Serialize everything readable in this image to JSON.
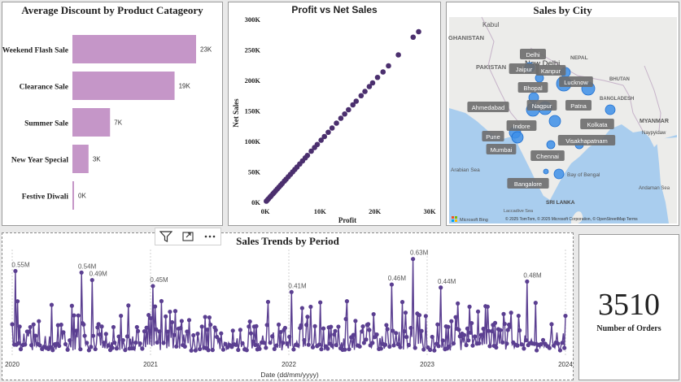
{
  "discount_chart": {
    "title": "Average Discount by Product Catageory",
    "chart_data": {
      "type": "bar",
      "orientation": "horizontal",
      "title": "Average Discount by Product Catageory",
      "categories": [
        "Weekend Flash Sale",
        "Clearance Sale",
        "Summer Sale",
        "New Year Special",
        "Festive Diwali"
      ],
      "values": [
        23000,
        19000,
        7000,
        3000,
        0
      ],
      "value_labels": [
        "23K",
        "19K",
        "7K",
        "3K",
        "0K"
      ],
      "bar_color": "#c596c8"
    }
  },
  "scatter_chart": {
    "title": "Profit vs Net Sales",
    "chart_data": {
      "type": "scatter",
      "title": "Profit vs Net Sales",
      "xlabel": "Profit",
      "ylabel": "Net Sales",
      "xlim": [
        0,
        30000
      ],
      "ylim": [
        0,
        300000
      ],
      "x_ticks": [
        "0K",
        "10K",
        "20K",
        "30K"
      ],
      "y_ticks": [
        "0K",
        "50K",
        "100K",
        "150K",
        "200K",
        "250K",
        "300K"
      ],
      "point_color": "#4b2f6e",
      "points": [
        [
          28,
          280
        ],
        [
          27,
          271
        ],
        [
          24.3,
          242
        ],
        [
          22.5,
          224
        ],
        [
          21.5,
          214
        ],
        [
          20.5,
          205
        ],
        [
          19.6,
          196
        ],
        [
          19,
          190
        ],
        [
          18.2,
          182
        ],
        [
          17.5,
          175
        ],
        [
          16.6,
          166
        ],
        [
          16,
          160
        ],
        [
          15.2,
          152
        ],
        [
          14.5,
          145
        ],
        [
          13.8,
          138
        ],
        [
          13,
          130
        ],
        [
          12.2,
          122
        ],
        [
          11.5,
          115
        ],
        [
          10.8,
          108
        ],
        [
          10.2,
          102
        ],
        [
          9.5,
          95
        ],
        [
          9,
          90
        ],
        [
          8.4,
          84
        ],
        [
          7.7,
          77
        ],
        [
          7.3,
          73
        ],
        [
          6.8,
          68
        ],
        [
          6.3,
          63
        ],
        [
          5.8,
          58
        ],
        [
          5.4,
          54
        ],
        [
          5,
          50
        ],
        [
          4.6,
          46
        ],
        [
          4.2,
          42
        ],
        [
          3.8,
          38
        ],
        [
          3.5,
          35
        ],
        [
          3.1,
          31
        ],
        [
          2.8,
          28
        ],
        [
          2.5,
          25
        ],
        [
          2.2,
          22
        ],
        [
          1.9,
          19
        ],
        [
          1.6,
          16
        ],
        [
          1.4,
          14
        ],
        [
          1.1,
          11
        ],
        [
          0.9,
          9
        ],
        [
          0.6,
          6
        ],
        [
          0.4,
          4
        ],
        [
          0.2,
          2
        ]
      ]
    }
  },
  "city_map": {
    "title": "Sales by City",
    "places": [
      "GHANISTAN",
      "Kabul",
      "PAKISTAN",
      "New Delhi",
      "NEPAL",
      "BHUTAN",
      "BANGLADESH",
      "MYANMAR",
      "Naypyidaw",
      "Arabian Sea",
      "Bay of Bengal",
      "SRI LANKA",
      "Andaman Sea",
      "Laccadive Sea"
    ],
    "cities": [
      "Delhi",
      "Jaipur",
      "Kanpur",
      "Lucknow",
      "Bhopal",
      "Ahmedabad",
      "Nagpur",
      "Patna",
      "Kolkata",
      "Indore",
      "Pune",
      "Mumbai",
      "Visakhapatnam",
      "Chennai",
      "Bangalore"
    ],
    "logo_text": "Microsoft Bing",
    "copyright": "© 2025 TomTom, © 2025 Microsoft Corporation, © OpenStreetMap  Terms"
  },
  "trend_chart": {
    "title": "Sales Trends by Period",
    "chart_data": {
      "type": "line",
      "title": "Sales Trends by Period",
      "xlabel": "Date (dd/mm/yyyy)",
      "x_ticks": [
        "2020",
        "2021",
        "2022",
        "2023",
        "2024"
      ],
      "ylim": [
        0,
        0.65
      ],
      "series_color": "#5b3f91",
      "annotations": [
        {
          "x": 2020.02,
          "y": 0.55,
          "label": "0.55M"
        },
        {
          "x": 2020.5,
          "y": 0.54,
          "label": "0.54M"
        },
        {
          "x": 2020.58,
          "y": 0.49,
          "label": "0.49M"
        },
        {
          "x": 2021.02,
          "y": 0.45,
          "label": "0.45M"
        },
        {
          "x": 2022.02,
          "y": 0.41,
          "label": "0.41M"
        },
        {
          "x": 2022.74,
          "y": 0.46,
          "label": "0.46M"
        },
        {
          "x": 2022.9,
          "y": 0.63,
          "label": "0.63M"
        },
        {
          "x": 2023.1,
          "y": 0.44,
          "label": "0.44M"
        },
        {
          "x": 2023.72,
          "y": 0.48,
          "label": "0.48M"
        }
      ],
      "base_level_m": 0.05,
      "spike_range_m": [
        0.1,
        0.35
      ]
    }
  },
  "kpi_card": {
    "value": "3510",
    "label": "Number of Orders"
  }
}
